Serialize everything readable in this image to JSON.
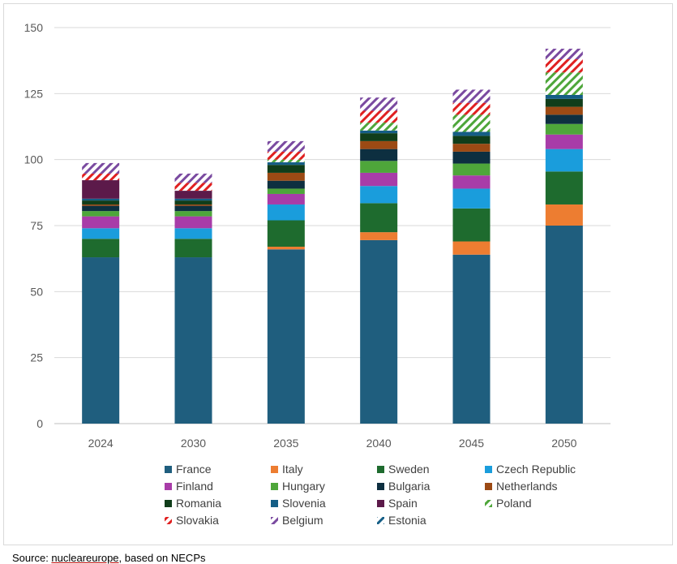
{
  "source": {
    "prefix": "Source: ",
    "link": "nucleareurope",
    "suffix": ", based on NECPs"
  },
  "chart_data": {
    "type": "bar",
    "stacked": true,
    "categories": [
      "2024",
      "2030",
      "2035",
      "2040",
      "2045",
      "2050"
    ],
    "ylim": [
      0,
      150
    ],
    "yticks": [
      0,
      25,
      50,
      75,
      100,
      125,
      150
    ],
    "grid": true,
    "legend_position": "bottom",
    "series": [
      {
        "name": "France",
        "color": "#1f5e7e",
        "pattern": "solid",
        "values": [
          63,
          63,
          66,
          69.5,
          64,
          75
        ]
      },
      {
        "name": "Italy",
        "color": "#ed7d31",
        "pattern": "solid",
        "values": [
          0,
          0,
          1,
          3,
          5,
          8
        ]
      },
      {
        "name": "Sweden",
        "color": "#1e6b2e",
        "pattern": "solid",
        "values": [
          7,
          7,
          10,
          11,
          12.5,
          12.5
        ]
      },
      {
        "name": "Czech Republic",
        "color": "#1a9ddc",
        "pattern": "solid",
        "values": [
          4,
          4,
          6,
          6.5,
          7.5,
          8.5
        ]
      },
      {
        "name": "Finland",
        "color": "#a83ca8",
        "pattern": "solid",
        "values": [
          4.5,
          4.5,
          4,
          5,
          5,
          5.5
        ]
      },
      {
        "name": "Hungary",
        "color": "#4ea63a",
        "pattern": "solid",
        "values": [
          2,
          2,
          2,
          4.5,
          4.5,
          4
        ]
      },
      {
        "name": "Bulgaria",
        "color": "#0d2f40",
        "pattern": "solid",
        "values": [
          2,
          2,
          3,
          4.5,
          4.5,
          3.5
        ]
      },
      {
        "name": "Netherlands",
        "color": "#9c4a14",
        "pattern": "solid",
        "values": [
          0.5,
          0.5,
          3,
          3,
          3,
          3
        ]
      },
      {
        "name": "Romania",
        "color": "#103d1a",
        "pattern": "solid",
        "values": [
          1.5,
          1.5,
          3,
          3,
          3,
          3
        ]
      },
      {
        "name": "Slovenia",
        "color": "#155e86",
        "pattern": "solid",
        "values": [
          0.7,
          0.7,
          1,
          1,
          1.5,
          1.5
        ]
      },
      {
        "name": "Spain",
        "color": "#5c1a4a",
        "pattern": "solid",
        "values": [
          7,
          3,
          0,
          0,
          0,
          0
        ]
      },
      {
        "name": "Poland",
        "color": "#4ea63a",
        "pattern": "hatch",
        "values": [
          0,
          0,
          1,
          3,
          6.5,
          8.5
        ]
      },
      {
        "name": "Slovakia",
        "color": "#e02020",
        "pattern": "hatch",
        "values": [
          2.5,
          3,
          3,
          4.5,
          4.5,
          5
        ]
      },
      {
        "name": "Belgium",
        "color": "#7a4aa0",
        "pattern": "hatch",
        "values": [
          4,
          3.5,
          4,
          5,
          5,
          4
        ]
      },
      {
        "name": "Estonia",
        "color": "#155e86",
        "pattern": "hatch",
        "values": [
          0,
          0,
          0,
          0,
          0,
          0
        ]
      }
    ]
  }
}
